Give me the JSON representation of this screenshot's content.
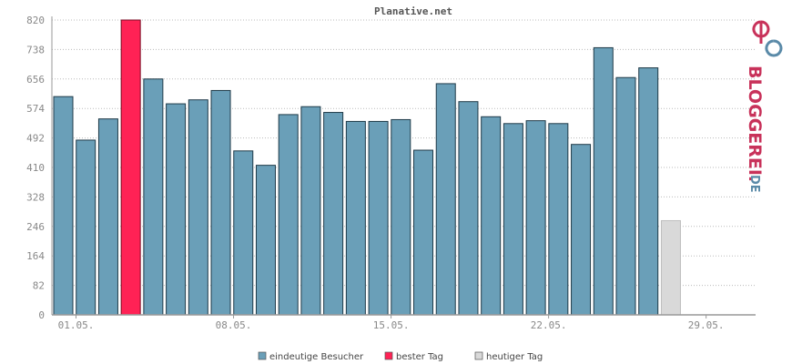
{
  "chart_data": {
    "type": "bar",
    "title": "Planative.net",
    "ylim": [
      0,
      820
    ],
    "yticks": [
      0,
      82,
      164,
      246,
      328,
      410,
      492,
      574,
      656,
      738,
      820
    ],
    "xtick_labels": [
      {
        "day_index": 1,
        "label": "01.05."
      },
      {
        "day_index": 8,
        "label": "08.05."
      },
      {
        "day_index": 15,
        "label": "15.05."
      },
      {
        "day_index": 22,
        "label": "22.05."
      },
      {
        "day_index": 29,
        "label": "29.05."
      }
    ],
    "days": [
      "01.05.",
      "02.05.",
      "03.05.",
      "04.05.",
      "05.05.",
      "06.05.",
      "07.05.",
      "08.05.",
      "09.05.",
      "10.05.",
      "11.05.",
      "12.05.",
      "13.05.",
      "14.05.",
      "15.05.",
      "16.05.",
      "17.05.",
      "18.05.",
      "19.05.",
      "20.05.",
      "21.05.",
      "22.05.",
      "23.05.",
      "24.05.",
      "25.05.",
      "26.05.",
      "27.05.",
      "28.05.",
      "29.05.",
      "30.05.",
      "31.05."
    ],
    "series": [
      {
        "name": "eindeutige Besucher",
        "color": "#6a9fb8",
        "values": [
          607,
          486,
          545,
          820,
          656,
          587,
          598,
          624,
          456,
          416,
          557,
          579,
          563,
          538,
          538,
          543,
          458,
          643,
          593,
          551,
          532,
          540,
          532,
          474,
          743,
          660,
          687,
          null,
          null,
          null,
          null
        ]
      },
      {
        "name": "bester Tag",
        "color": "#ff2255",
        "day": "04.05.",
        "value": 820
      },
      {
        "name": "heutiger Tag",
        "color": "#d9d9d9",
        "day": "28.05.",
        "value": 262
      }
    ],
    "grid": true,
    "legend_position": "bottom"
  },
  "legend": [
    {
      "label": "eindeutige Besucher",
      "color": "#6a9fb8"
    },
    {
      "label": "bester Tag",
      "color": "#ff2255"
    },
    {
      "label": "heutiger Tag",
      "color": "#d9d9d9"
    }
  ],
  "brand": {
    "text": "BLOGGEREI.",
    "tld": "DE",
    "colors": {
      "red": "#c8325a",
      "blue": "#5a8aa8",
      "gray": "#8a9aa8"
    }
  }
}
